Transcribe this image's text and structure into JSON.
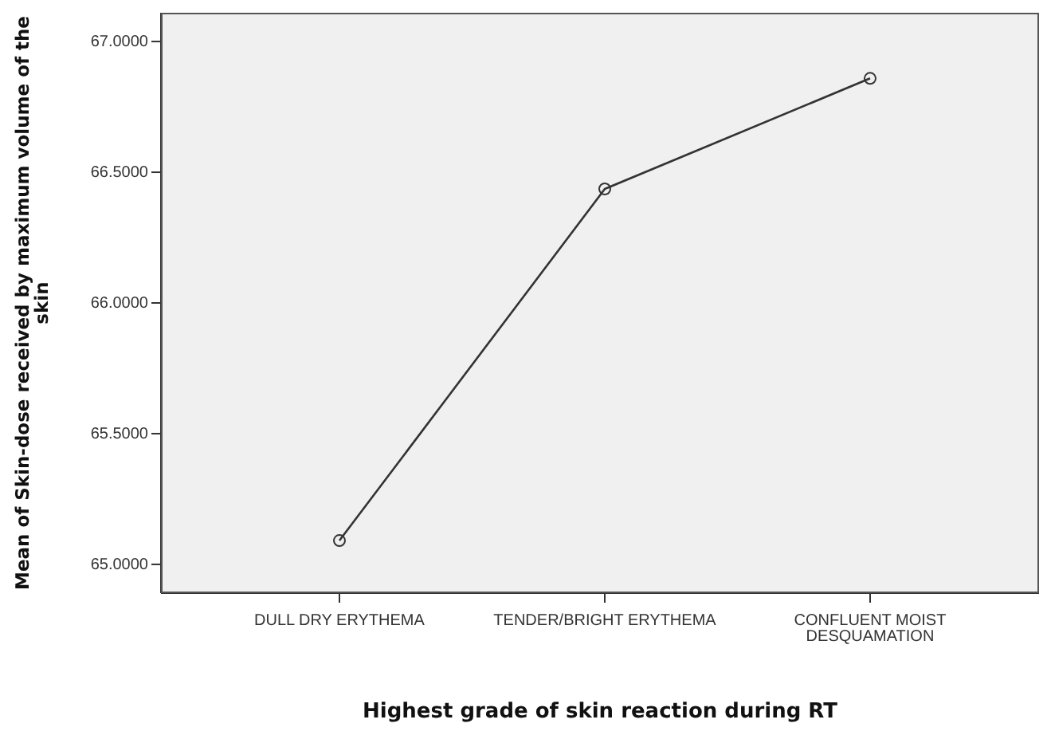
{
  "chart_data": {
    "type": "line",
    "xlabel": "Highest grade of skin reaction during RT",
    "ylabel": "Mean of Skin-dose received by maximum volume of the skin",
    "categories": [
      "DULL DRY ERYTHEMA",
      "TENDER/BRIGHT ERYTHEMA",
      "CONFLUENT MOIST DESQUAMATION"
    ],
    "series": [
      {
        "color": "#333333",
        "values": [
          65.091,
          66.436,
          66.859
        ]
      }
    ],
    "ylim": [
      64.89,
      67.11
    ],
    "yticks": [
      {
        "value": 65,
        "label": "65.0000"
      },
      {
        "value": 65.5,
        "label": "65.5000"
      },
      {
        "value": 66,
        "label": "66.0000"
      },
      {
        "value": 66.5,
        "label": "66.5000"
      },
      {
        "value": 67,
        "label": "67.0000"
      }
    ],
    "grid": false,
    "legend": false,
    "marker": "circle",
    "line_style": "solid"
  }
}
